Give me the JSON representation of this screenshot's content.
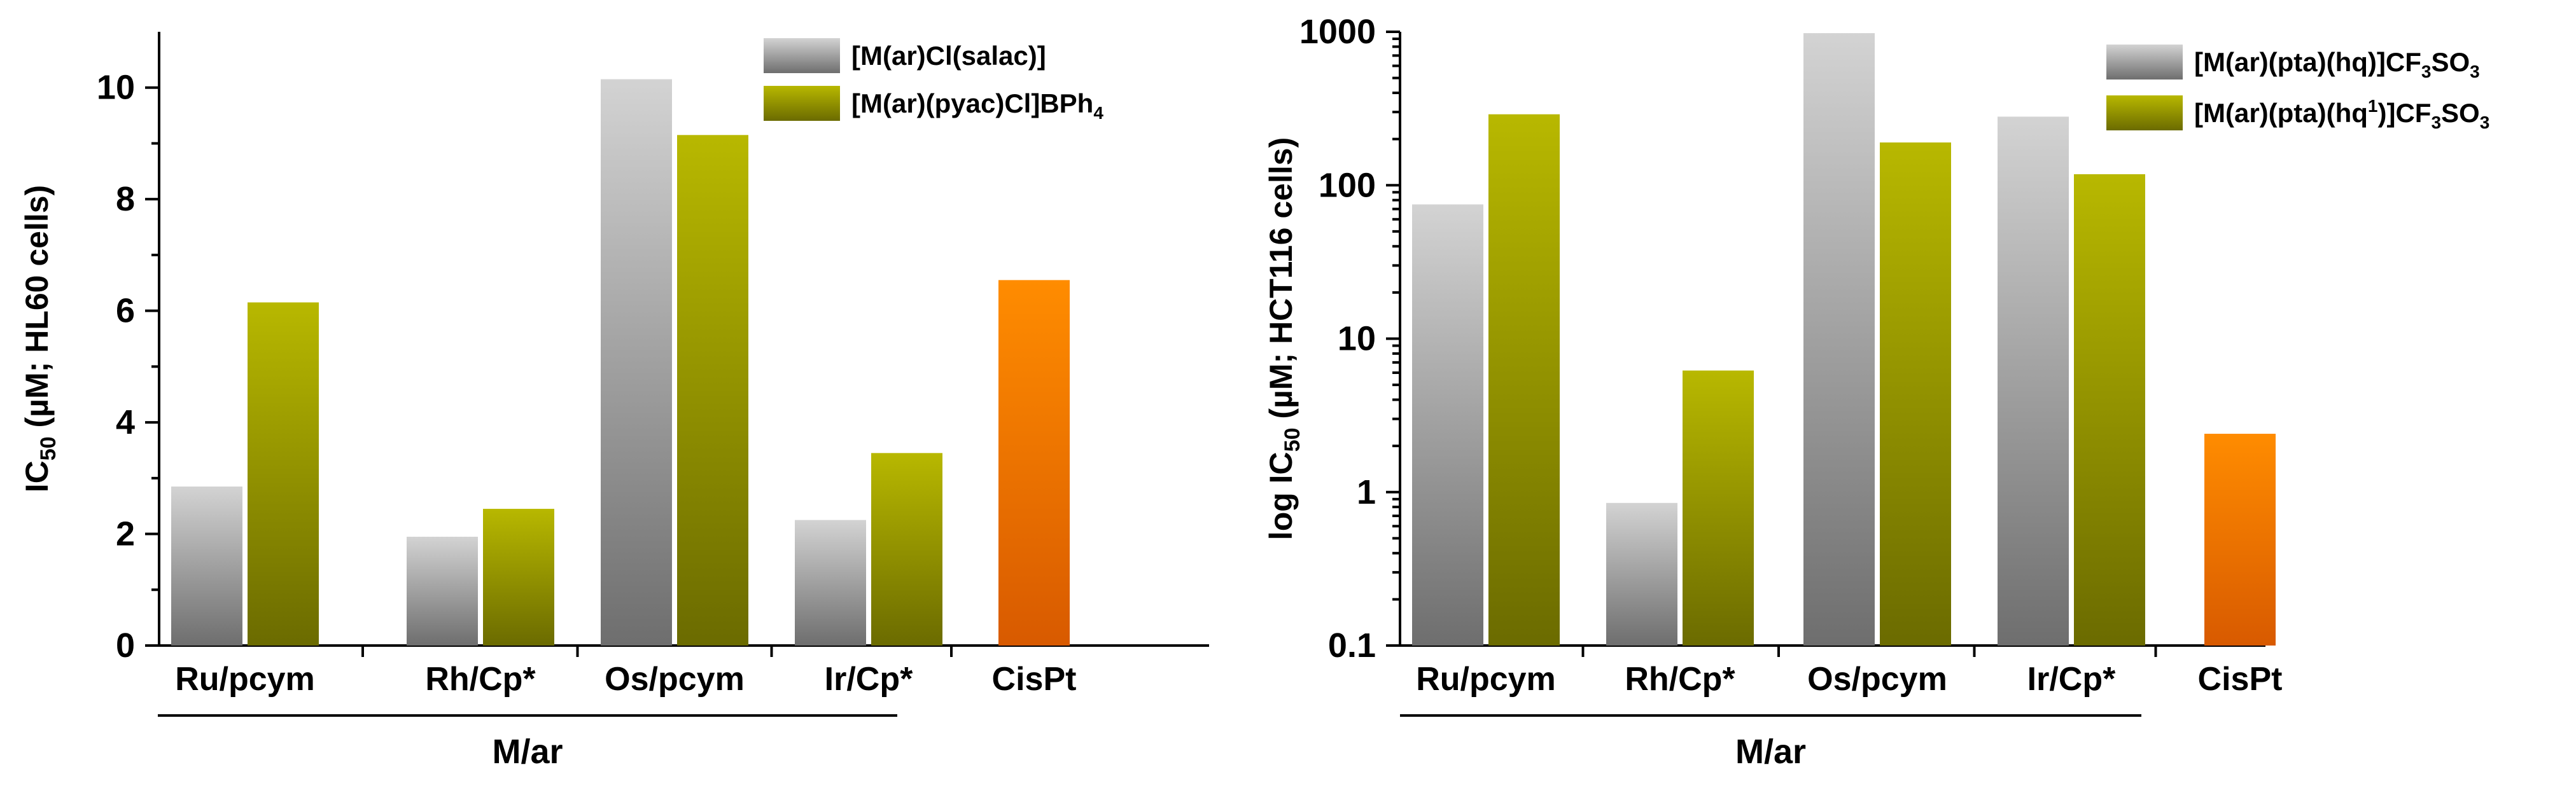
{
  "colors": {
    "grey_light": "#d3d3d3",
    "grey_dark": "#6e6e6e",
    "olive_light": "#b8b800",
    "olive_dark": "#6b6b00",
    "orange_light": "#ff8c00",
    "orange_dark": "#d85a00"
  },
  "chart_data": [
    {
      "type": "bar",
      "ylabel": "IC50 (µM; HL60 cells)",
      "ylabel_main": "IC",
      "ylabel_sub": "50",
      "ylabel_rest": " (µM; HL60 cells)",
      "xlabel": "M/ar",
      "yscale": "linear",
      "ylim": [
        0,
        11
      ],
      "yticks": [
        0,
        2,
        4,
        6,
        8,
        10
      ],
      "ytick_labels": [
        "0",
        "2",
        "4",
        "6",
        "8",
        "10"
      ],
      "categories": [
        "Ru/pcym",
        "Rh/Cp*",
        "Os/pcym",
        "Ir/Cp*",
        "CisPt"
      ],
      "grouped_categories": [
        "Ru/pcym",
        "Rh/Cp*",
        "Os/pcym",
        "Ir/Cp*"
      ],
      "series": [
        {
          "name": "[M(ar)Cl(salac)]",
          "legend_main": "[M(ar)Cl(salac)]",
          "color": "grey",
          "values": [
            2.85,
            1.95,
            10.15,
            2.25,
            null
          ]
        },
        {
          "name": "[M(ar)(pyac)Cl]BPh4",
          "legend_main": "[M(ar)(pyac)Cl]BPh",
          "legend_sub": "4",
          "legend_tail": "",
          "color": "olive",
          "values": [
            6.15,
            2.45,
            9.15,
            3.45,
            null
          ]
        },
        {
          "name": "CisPt",
          "color": "orange",
          "values": [
            null,
            null,
            null,
            null,
            6.55
          ]
        }
      ],
      "legend_position": "top-right"
    },
    {
      "type": "bar",
      "ylabel": "log IC50 (µM; HCT116 cells)",
      "ylabel_main": "log IC",
      "ylabel_sub": "50",
      "ylabel_rest": " (µM; HCT116 cells)",
      "xlabel": "M/ar",
      "yscale": "log",
      "ylim": [
        0.1,
        1000
      ],
      "yticks": [
        0.1,
        1,
        10,
        100,
        1000
      ],
      "ytick_labels": [
        "0.1",
        "1",
        "10",
        "100",
        "1000"
      ],
      "categories": [
        "Ru/pcym",
        "Rh/Cp*",
        "Os/pcym",
        "Ir/Cp*",
        "CisPt"
      ],
      "grouped_categories": [
        "Ru/pcym",
        "Rh/Cp*",
        "Os/pcym",
        "Ir/Cp*"
      ],
      "series": [
        {
          "name": "[M(ar)(pta)(hq)]CF3SO3",
          "legend_main": "[M(ar)(pta)(hq)]CF",
          "legend_sub": "3",
          "legend_tail": "SO",
          "legend_sub2": "3",
          "color": "grey",
          "values": [
            75,
            0.85,
            980,
            280,
            null
          ]
        },
        {
          "name": "[M(ar)(pta)(hq1)]CF3SO3",
          "legend_main": "[M(ar)(pta)(hq",
          "legend_sup": "1",
          "legend_mid": ")]CF",
          "legend_sub": "3",
          "legend_tail": "SO",
          "legend_sub2": "3",
          "color": "olive",
          "values": [
            290,
            6.2,
            190,
            118,
            null
          ]
        },
        {
          "name": "CisPt",
          "color": "orange",
          "values": [
            null,
            null,
            null,
            null,
            2.4
          ]
        }
      ],
      "legend_position": "top-right"
    }
  ]
}
